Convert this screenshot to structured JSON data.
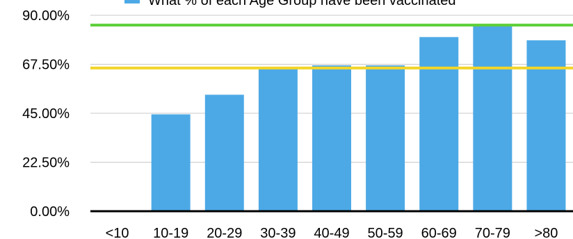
{
  "chart_data": {
    "type": "bar",
    "categories": [
      "<10",
      "10-19",
      "20-29",
      "30-39",
      "40-49",
      "50-59",
      "60-69",
      "70-79",
      ">80"
    ],
    "series": [
      {
        "name": "What % of each Age Group have been vaccinated",
        "color": "#4da9e6",
        "values": [
          0,
          44.5,
          53.5,
          65.5,
          67.0,
          67.0,
          80.0,
          85.0,
          78.5
        ]
      }
    ],
    "ylim": [
      0,
      90
    ],
    "yticks": [
      "0.00%",
      "22.50%",
      "45.00%",
      "67.50%",
      "90.00%"
    ],
    "ytick_values": [
      0,
      22.5,
      45,
      67.5,
      90
    ],
    "reference_lines": [
      {
        "value": 85.5,
        "color": "#5ccf3a"
      },
      {
        "value": 65.8,
        "color": "#f2d52a"
      }
    ],
    "grid": true,
    "legend": "top"
  }
}
